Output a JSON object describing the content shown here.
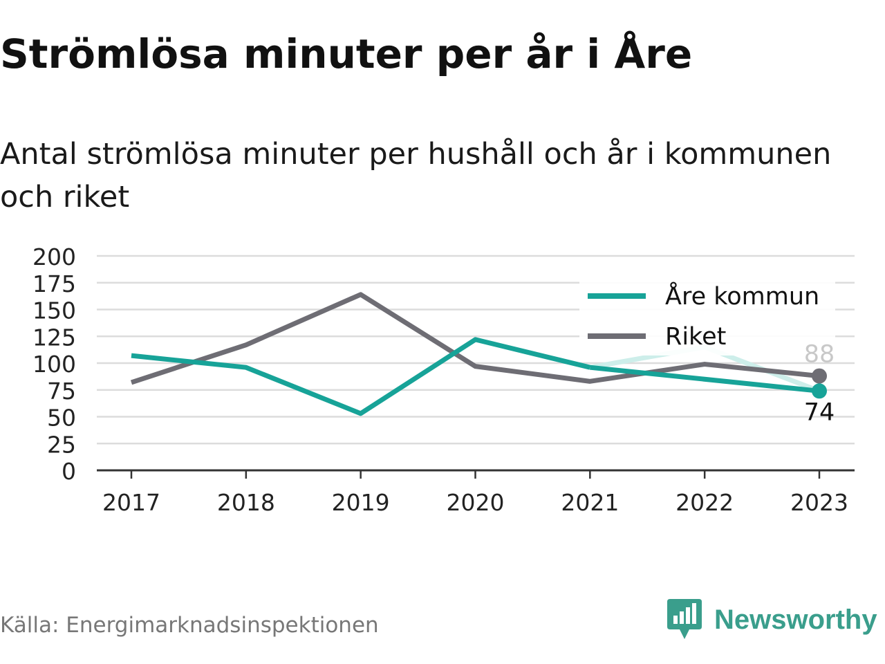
{
  "title": "Strömlösa minuter per år i Åre",
  "subtitle": "Antal strömlösa minuter per hushåll och år i kommunen och riket",
  "source": "Källa: Energimarknadsinspektionen",
  "brand": {
    "name": "Newsworthy",
    "color": "#3a9e8c"
  },
  "colors": {
    "are": "#17a398",
    "riket": "#6e6d74",
    "are_light": "#cdeeea",
    "grid": "#dcdcdc"
  },
  "chart_data": {
    "type": "line",
    "title": "Strömlösa minuter per år i Åre",
    "subtitle": "Antal strömlösa minuter per hushåll och år i kommunen och riket",
    "xlabel": "",
    "ylabel": "",
    "categories": [
      "2017",
      "2018",
      "2019",
      "2020",
      "2021",
      "2022",
      "2023"
    ],
    "ylim": [
      0,
      200
    ],
    "yticks": [
      0,
      25,
      50,
      75,
      100,
      125,
      150,
      175,
      200
    ],
    "grid": true,
    "legend_position": "top-right",
    "series": [
      {
        "name": "Åre kommun",
        "color": "#17a398",
        "values": [
          107,
          96,
          53,
          122,
          96,
          115,
          74
        ],
        "end_label": "74",
        "highlight_light": true
      },
      {
        "name": "Riket",
        "color": "#6e6d74",
        "values": [
          82,
          117,
          164,
          97,
          83,
          99,
          88
        ],
        "end_label": "88"
      }
    ]
  }
}
